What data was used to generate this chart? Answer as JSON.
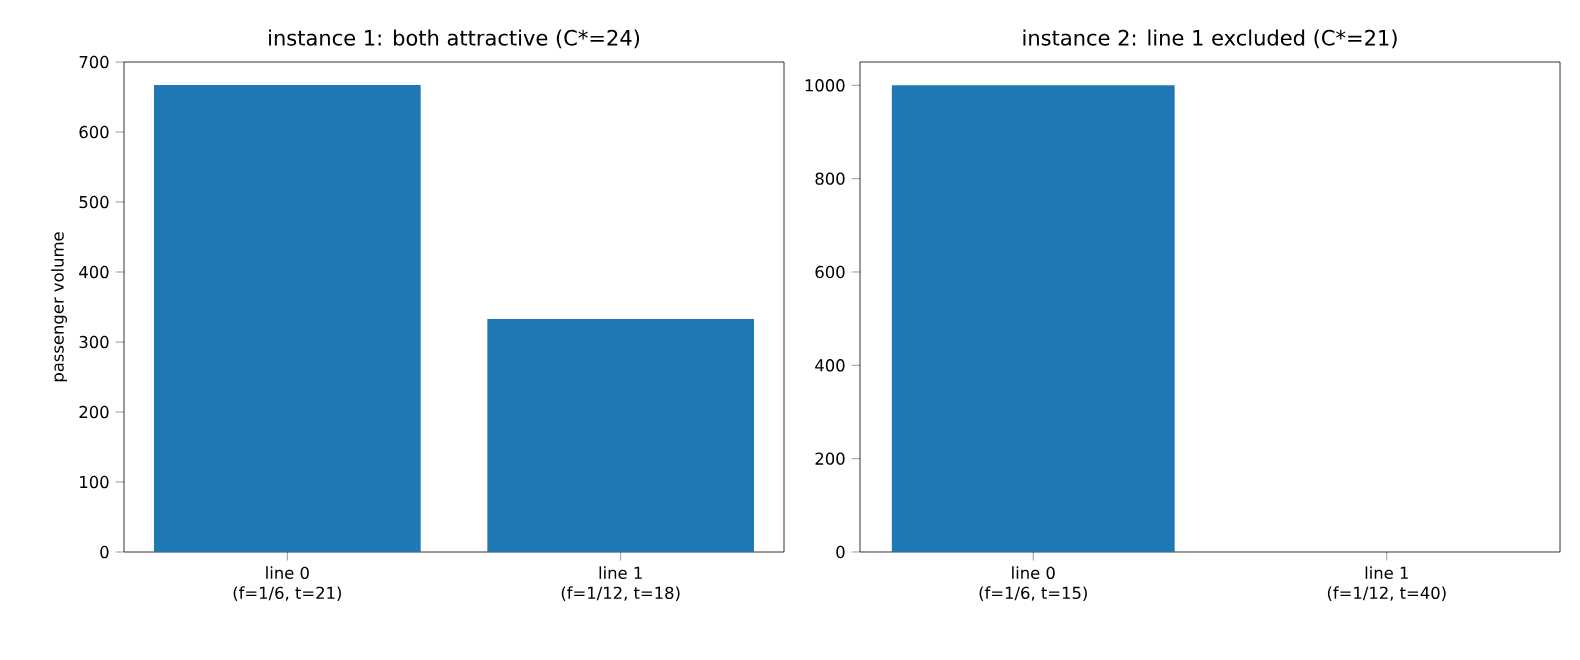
{
  "chart_data": [
    {
      "type": "bar",
      "title": "instance 1: both attractive (C*=24)",
      "ylabel": "passenger volume",
      "categories": [
        "line 0\n(f=1/6, t=21)",
        "line 1\n(f=1/12, t=18)"
      ],
      "values": [
        667,
        333
      ],
      "color": "#1f77b4",
      "ylim": [
        0,
        700
      ],
      "yticks": [
        0,
        100,
        200,
        300,
        400,
        500,
        600,
        700
      ]
    },
    {
      "type": "bar",
      "title": "instance 2: line 1 excluded (C*=21)",
      "categories": [
        "line 0\n(f=1/6, t=15)",
        "line 1\n(f=1/12, t=40)"
      ],
      "values": [
        1000,
        0
      ],
      "color": "#1f77b4",
      "ylim": [
        0,
        1050
      ],
      "yticks": [
        0,
        200,
        400,
        600,
        800,
        1000
      ]
    }
  ]
}
